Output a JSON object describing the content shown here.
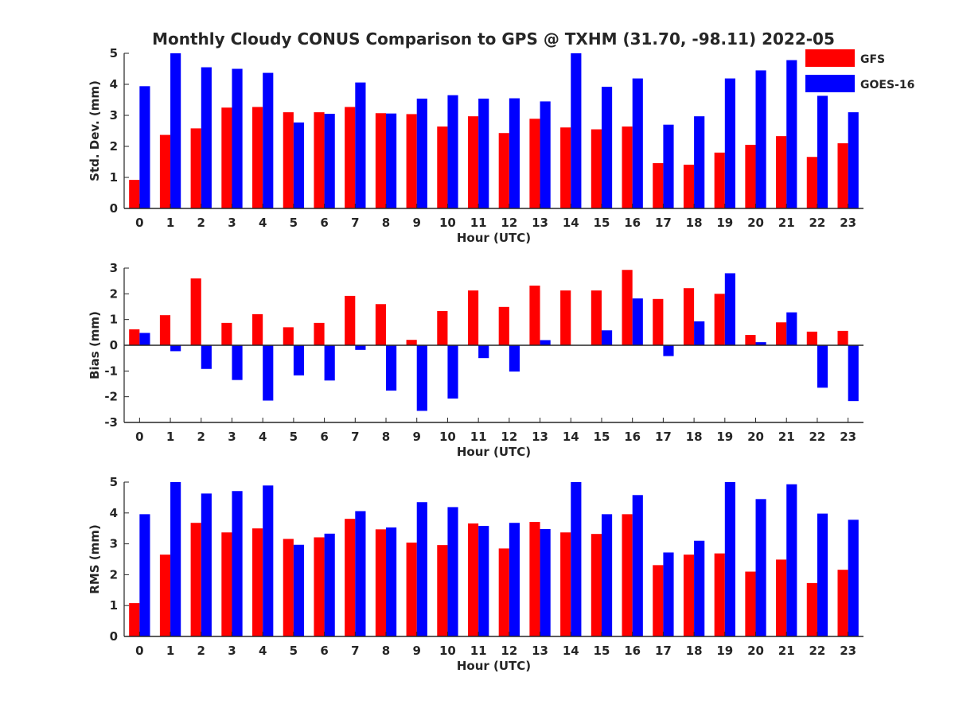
{
  "chart_data": {
    "title": "Monthly Cloudy CONUS Comparison to GPS @ TXHM (31.70, -98.11) 2022-05",
    "legend": {
      "placement": "top-right",
      "entries": [
        {
          "name": "GFS",
          "color": "#ff0000"
        },
        {
          "name": "GOES-16",
          "color": "#0000ff"
        }
      ]
    },
    "panels": [
      {
        "type": "bar",
        "xlabel": "Hour (UTC)",
        "ylabel": "Std. Dev. (mm)",
        "ylim": [
          0,
          5
        ],
        "yticks": [
          "0",
          "1",
          "2",
          "3",
          "4",
          "5"
        ],
        "categories": [
          "0",
          "1",
          "2",
          "3",
          "4",
          "5",
          "6",
          "7",
          "8",
          "9",
          "10",
          "11",
          "12",
          "13",
          "14",
          "15",
          "16",
          "17",
          "18",
          "19",
          "20",
          "21",
          "22",
          "23"
        ],
        "series": [
          {
            "name": "GFS",
            "color": "#ff0000",
            "values": [
              0.92,
              2.37,
              2.58,
              3.25,
              3.27,
              3.1,
              3.1,
              3.27,
              3.07,
              3.04,
              2.64,
              2.97,
              2.43,
              2.89,
              2.61,
              2.55,
              2.64,
              1.46,
              1.41,
              1.8,
              2.05,
              2.33,
              1.66,
              2.1
            ]
          },
          {
            "name": "GOES-16",
            "color": "#0000ff",
            "values": [
              3.94,
              5.0,
              4.55,
              4.5,
              4.37,
              2.77,
              3.05,
              4.06,
              3.06,
              3.54,
              3.65,
              3.54,
              3.55,
              3.45,
              5.0,
              3.92,
              4.19,
              2.7,
              2.97,
              4.19,
              4.45,
              4.78,
              3.63,
              3.1
            ]
          }
        ]
      },
      {
        "type": "bar",
        "xlabel": "Hour (UTC)",
        "ylabel": "Bias (mm)",
        "ylim": [
          -3,
          3
        ],
        "yticks": [
          "-3",
          "-2",
          "-1",
          "0",
          "1",
          "2",
          "3"
        ],
        "categories": [
          "0",
          "1",
          "2",
          "3",
          "4",
          "5",
          "6",
          "7",
          "8",
          "9",
          "10",
          "11",
          "12",
          "13",
          "14",
          "15",
          "16",
          "17",
          "18",
          "19",
          "20",
          "21",
          "22",
          "23"
        ],
        "series": [
          {
            "name": "GFS",
            "color": "#ff0000",
            "values": [
              0.62,
              1.17,
              2.6,
              0.87,
              1.21,
              0.7,
              0.87,
              1.92,
              1.6,
              0.21,
              1.33,
              2.13,
              1.49,
              2.32,
              2.13,
              2.13,
              2.93,
              1.8,
              2.22,
              2.0,
              0.4,
              0.89,
              0.53,
              0.56
            ]
          },
          {
            "name": "GOES-16",
            "color": "#0000ff",
            "values": [
              0.48,
              -0.23,
              -0.92,
              -1.35,
              -2.15,
              -1.17,
              -1.37,
              -0.18,
              -1.76,
              -2.55,
              -2.07,
              -0.5,
              -1.02,
              0.2,
              0.0,
              0.58,
              1.82,
              -0.42,
              0.93,
              2.8,
              0.12,
              1.28,
              -1.65,
              -2.17
            ]
          }
        ]
      },
      {
        "type": "bar",
        "xlabel": "Hour (UTC)",
        "ylabel": "RMS (mm)",
        "ylim": [
          0,
          5
        ],
        "yticks": [
          "0",
          "1",
          "2",
          "3",
          "4",
          "5"
        ],
        "categories": [
          "0",
          "1",
          "2",
          "3",
          "4",
          "5",
          "6",
          "7",
          "8",
          "9",
          "10",
          "11",
          "12",
          "13",
          "14",
          "15",
          "16",
          "17",
          "18",
          "19",
          "20",
          "21",
          "22",
          "23"
        ],
        "series": [
          {
            "name": "GFS",
            "color": "#ff0000",
            "values": [
              1.08,
              2.65,
              3.68,
              3.37,
              3.5,
              3.16,
              3.21,
              3.81,
              3.47,
              3.04,
              2.96,
              3.66,
              2.85,
              3.71,
              3.37,
              3.32,
              3.96,
              2.31,
              2.65,
              2.69,
              2.1,
              2.49,
              1.73,
              2.16
            ]
          },
          {
            "name": "GOES-16",
            "color": "#0000ff",
            "values": [
              3.96,
              5.0,
              4.63,
              4.71,
              4.89,
              2.97,
              3.33,
              4.06,
              3.53,
              4.35,
              4.19,
              3.58,
              3.68,
              3.48,
              5.0,
              3.96,
              4.58,
              2.72,
              3.1,
              5.0,
              4.45,
              4.93,
              3.98,
              3.78
            ]
          }
        ]
      }
    ]
  }
}
